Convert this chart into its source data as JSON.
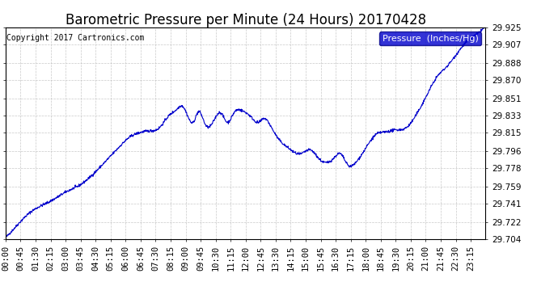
{
  "title": "Barometric Pressure per Minute (24 Hours) 20170428",
  "copyright_text": "Copyright 2017 Cartronics.com",
  "legend_label": "Pressure  (Inches/Hg)",
  "line_color": "#0000cc",
  "background_color": "#ffffff",
  "plot_bg_color": "#ffffff",
  "grid_color": "#aaaaaa",
  "legend_bg_color": "#0000cc",
  "legend_text_color": "#ffffff",
  "yticks": [
    29.704,
    29.722,
    29.741,
    29.759,
    29.778,
    29.796,
    29.815,
    29.833,
    29.851,
    29.87,
    29.888,
    29.907,
    29.925
  ],
  "xtick_labels": [
    "00:00",
    "00:45",
    "01:30",
    "02:15",
    "03:00",
    "03:45",
    "04:30",
    "05:15",
    "06:00",
    "06:45",
    "07:30",
    "08:15",
    "09:00",
    "09:45",
    "10:30",
    "11:15",
    "12:00",
    "12:45",
    "13:30",
    "14:15",
    "15:00",
    "15:45",
    "16:30",
    "17:15",
    "18:00",
    "18:45",
    "19:30",
    "20:15",
    "21:00",
    "21:45",
    "22:30",
    "23:15"
  ],
  "ylim": [
    29.704,
    29.925
  ],
  "title_fontsize": 12,
  "axis_fontsize": 7.5,
  "copyright_fontsize": 7,
  "waypoints_x": [
    0,
    30,
    60,
    90,
    130,
    160,
    190,
    220,
    250,
    280,
    310,
    340,
    370,
    400,
    430,
    460,
    490,
    515,
    530,
    548,
    563,
    578,
    600,
    625,
    645,
    665,
    685,
    710,
    735,
    760,
    775,
    795,
    820,
    845,
    860,
    885,
    915,
    940,
    960,
    985,
    1005,
    1025,
    1050,
    1080,
    1110,
    1140,
    1170,
    1200,
    1230,
    1260,
    1295,
    1320,
    1350,
    1380,
    1410,
    1440
  ],
  "waypoints_y": [
    29.706,
    29.717,
    29.728,
    29.736,
    29.743,
    29.749,
    29.755,
    29.76,
    29.768,
    29.778,
    29.789,
    29.8,
    29.81,
    29.815,
    29.817,
    29.82,
    29.833,
    29.84,
    29.843,
    29.831,
    29.826,
    29.837,
    29.823,
    29.828,
    29.836,
    29.826,
    29.836,
    29.838,
    29.832,
    29.826,
    29.83,
    29.822,
    29.808,
    29.8,
    29.796,
    29.793,
    29.797,
    29.788,
    29.784,
    29.789,
    29.793,
    29.782,
    29.784,
    29.799,
    29.813,
    29.816,
    29.818,
    29.82,
    29.833,
    29.852,
    29.874,
    29.883,
    29.896,
    29.909,
    29.917,
    29.927
  ]
}
